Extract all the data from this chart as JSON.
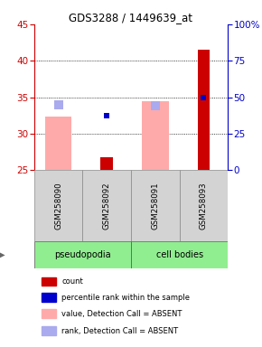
{
  "title": "GDS3288 / 1449639_at",
  "samples": [
    "GSM258090",
    "GSM258092",
    "GSM258091",
    "GSM258093"
  ],
  "groups": [
    "pseudopodia",
    "pseudopodia",
    "cell bodies",
    "cell bodies"
  ],
  "ylim_left": [
    25,
    45
  ],
  "ylim_right": [
    0,
    100
  ],
  "yticks_left": [
    25,
    30,
    35,
    40,
    45
  ],
  "yticks_right": [
    0,
    25,
    50,
    75,
    100
  ],
  "count_values": [
    null,
    26.7,
    null,
    41.5
  ],
  "count_color": "#cc0000",
  "rank_values": [
    null,
    32.5,
    null,
    35.0
  ],
  "rank_color": "#0000cc",
  "value_absent_top": [
    32.3,
    null,
    34.5,
    null
  ],
  "value_absent_color": "#ffaaaa",
  "rank_absent_val": [
    33.9,
    null,
    33.8,
    null
  ],
  "rank_absent_color": "#aaaaee",
  "left_axis_color": "#cc0000",
  "right_axis_color": "#0000cc",
  "legend_items": [
    {
      "label": "count",
      "color": "#cc0000"
    },
    {
      "label": "percentile rank within the sample",
      "color": "#0000cc"
    },
    {
      "label": "value, Detection Call = ABSENT",
      "color": "#ffaaaa"
    },
    {
      "label": "rank, Detection Call = ABSENT",
      "color": "#aaaaee"
    }
  ],
  "bar_width": 0.55,
  "count_bar_width": 0.25
}
